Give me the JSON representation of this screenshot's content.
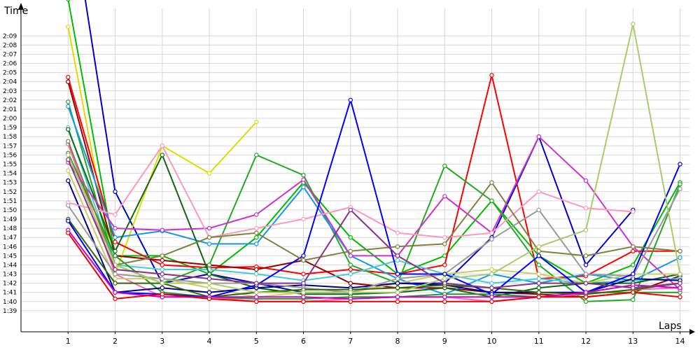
{
  "chart_data": {
    "type": "line",
    "title": "",
    "xlabel": "Laps",
    "ylabel": "Time",
    "x": [
      1,
      2,
      3,
      4,
      5,
      6,
      7,
      8,
      9,
      10,
      11,
      12,
      13,
      14
    ],
    "xlim": [
      0.0,
      14.2
    ],
    "y_ticks": [
      "1:39",
      "1:40",
      "1:41",
      "1:42",
      "1:43",
      "1:44",
      "1:45",
      "1:46",
      "1:47",
      "1:48",
      "1:49",
      "1:50",
      "1:51",
      "1:52",
      "1:53",
      "1:54",
      "1:55",
      "1:56",
      "1:57",
      "1:58",
      "1:59",
      "2:00",
      "2:01",
      "2:02",
      "2:03",
      "2:04",
      "2:05",
      "2:06",
      "2:07",
      "2:08",
      "2:09"
    ],
    "ylim": [
      "1:36.7",
      "2:12.0"
    ],
    "grid": true,
    "series": [
      {
        "color": "#0000cc",
        "values": [
          "2:25",
          "1:52",
          "1:42",
          "1:43",
          "1:42",
          "1:41",
          "1:41",
          "1:42",
          "1:42",
          "1:47",
          "1:58",
          "1:44",
          "1:50",
          null
        ]
      },
      {
        "color": "#00bb00",
        "values": [
          "2:13",
          "1:45",
          "1:45",
          "1:43",
          "1:47",
          "1:53",
          "1:47",
          "1:43",
          "1:45",
          "1:51",
          "1:45",
          "1:42",
          "1:44",
          "1:53"
        ]
      },
      {
        "color": "#dddd00",
        "values": [
          "2:10",
          "1:43",
          "1:57",
          "1:54",
          "1:59.6",
          null,
          null,
          null,
          null,
          null,
          null,
          null,
          null,
          null
        ]
      },
      {
        "color": "#ff0000",
        "values": [
          "2:04.5",
          "1:46.5",
          "1:44",
          "1:43.7",
          "1:43.8",
          "1:43",
          "1:43.5",
          "1:43",
          "1:44",
          "2:04.7",
          "1:42.5",
          "1:42.8",
          "1:45.5",
          "1:45.5"
        ]
      },
      {
        "color": "#990000",
        "values": [
          "2:04",
          "1:45",
          "1:44.5",
          "1:44",
          "1:43.5",
          "1:44.5",
          "1:42",
          "1:41.5",
          "1:41.5",
          "1:41",
          "1:40.8",
          "1:40.5",
          "1:41",
          "1:42.8"
        ]
      },
      {
        "color": "#22aa22",
        "values": [
          "2:01.8",
          "1:44",
          "1:42",
          "1:44",
          "1:56",
          "1:53.8",
          "1:44",
          "1:42",
          "1:54.8",
          "1:51",
          "1:44",
          "1:40",
          "1:40.2",
          "1:52.8"
        ]
      },
      {
        "color": "#1199ee",
        "values": [
          "2:01.3",
          "1:47",
          "1:47.7",
          "1:46.3",
          "1:46.3",
          "1:52.5",
          "1:45",
          "1:42.5",
          "1:40.8",
          "1:43",
          "1:42",
          "1:43",
          "1:42.3",
          "1:44.8"
        ]
      },
      {
        "color": "#44ccdd",
        "values": [
          "1:59",
          "1:44",
          "1:43.5",
          "1:43.5",
          "1:43",
          "1:42.3",
          "1:43",
          "1:44.5",
          "1:43",
          "1:42",
          "1:42.5",
          "1:42",
          "1:42.3",
          "1:42.5"
        ]
      },
      {
        "color": "#116611",
        "values": [
          "1:58.8",
          "1:45.5",
          "1:56",
          "1:43",
          "1:41.5",
          "1:40.8",
          "1:40.8",
          "1:41",
          "1:41.5",
          "1:40.5",
          "1:41.5",
          "1:42",
          "1:42",
          "1:43"
        ]
      },
      {
        "color": "#ff66bb",
        "values": [
          "1:57.2",
          "1:43",
          "1:40.5",
          "1:40.5",
          "1:40",
          "1:40",
          "1:40.3",
          "1:40.5",
          "1:40.5",
          "1:40",
          "1:40.5",
          "1:40.8",
          "1:41.3",
          "1:41.5"
        ]
      },
      {
        "color": "#229922",
        "values": [
          "1:56.2",
          "1:45",
          "1:41",
          "1:40.5",
          "1:40.3",
          "1:40.3",
          "1:40.5",
          "1:40.5",
          "1:40.8",
          "1:40.8",
          "1:40.5",
          "1:41",
          "1:41",
          "1:41"
        ]
      },
      {
        "color": "#cc33cc",
        "values": [
          "1:55.2",
          "1:48",
          "1:47.8",
          "1:48",
          "1:49.5",
          "1:53.3",
          "1:45",
          "1:45",
          "1:51.5",
          "1:47.5",
          "1:58",
          "1:53.2",
          "1:46",
          "1:41.3"
        ]
      },
      {
        "color": "#cccc66",
        "values": [
          "1:54.3",
          "1:42.5",
          "1:42.5",
          "1:41.5",
          "1:40.5",
          "1:41",
          "1:41",
          "1:42",
          "1:43",
          "1:43.5",
          "1:43",
          "1:42",
          "1:43",
          "1:43"
        ]
      },
      {
        "color": "#000088",
        "values": [
          "1:53.2",
          "1:41",
          "1:41.5",
          "1:41",
          "1:41.5",
          "1:41.8",
          "1:41.5",
          "1:42",
          "1:41.8",
          "1:41",
          "1:41",
          "1:41",
          "1:42.5",
          "1:42.3"
        ]
      },
      {
        "color": "#ff99bb",
        "values": [
          "1:50.8",
          "1:49.5",
          "1:57",
          "1:47",
          "1:48",
          "1:49",
          "1:50.3",
          "1:47.5",
          "1:47",
          "1:47.5",
          "1:52",
          "1:50.2",
          "1:49.8",
          null
        ]
      },
      {
        "color": "#999999",
        "values": [
          "1:50.5",
          "1:43",
          "1:42.5",
          "1:42",
          "1:42",
          "1:41.5",
          "1:41",
          "1:42.5",
          "1:43",
          "1:46.8",
          "1:50",
          "1:43",
          "1:42.8",
          "1:52.3"
        ]
      },
      {
        "color": "#336600",
        "values": [
          "1:49",
          "1:42",
          "1:42",
          "1:40.5",
          "1:41",
          "1:41.3",
          "1:41.3",
          "1:41.5",
          "1:41.8",
          "1:41.5",
          "1:41",
          "1:40.8",
          "1:41.3",
          "1:42"
        ]
      },
      {
        "color": "#0000ff",
        "values": [
          "1:48.8",
          "1:41",
          "1:40.8",
          "1:40.5",
          "1:41.8",
          "1:45",
          "2:02",
          "1:43",
          "1:43",
          "1:40.8",
          "1:45",
          "1:41",
          "1:43",
          "1:55"
        ]
      },
      {
        "color": "#cc00cc",
        "values": [
          "1:47.8",
          "1:41",
          "1:40.5",
          "1:40.5",
          "1:40.5",
          "1:40.5",
          "1:40.3",
          "1:40.5",
          "1:40.5",
          "1:40.5",
          "1:40.5",
          "1:41",
          "1:41.8",
          "1:41.5"
        ]
      },
      {
        "color": "#ee0000",
        "values": [
          "1:47.5",
          "1:40.3",
          "1:40.8",
          "1:40.3",
          "1:40",
          "1:40",
          "1:40",
          "1:40",
          "1:40",
          "1:40",
          "1:40.5",
          "1:40.5",
          "1:41",
          "1:40.5"
        ]
      },
      {
        "color": "#808040",
        "values": [
          "1:57.5",
          "1:44",
          "1:45",
          "1:47",
          "1:47.5",
          "1:44.5",
          "1:45.5",
          "1:46",
          "1:46.3",
          "1:53",
          "1:45.5",
          "1:45",
          "1:46",
          "1:45.5"
        ]
      },
      {
        "color": "#aacc66",
        "values": [
          "1:56",
          "1:44",
          "1:42",
          "1:42",
          "1:41",
          "1:41",
          "1:41",
          "1:41",
          "1:42.5",
          "1:43",
          "1:46",
          "1:47.8",
          "2:10.3",
          "1:43"
        ]
      },
      {
        "color": "#883388",
        "values": [
          "1:55.5",
          "1:43.5",
          "1:43",
          "1:42.5",
          "1:42",
          "1:42",
          "1:50",
          "1:45",
          "1:42",
          "1:41.5",
          "1:42",
          "1:42",
          "1:41.5",
          "1:42"
        ]
      }
    ]
  }
}
